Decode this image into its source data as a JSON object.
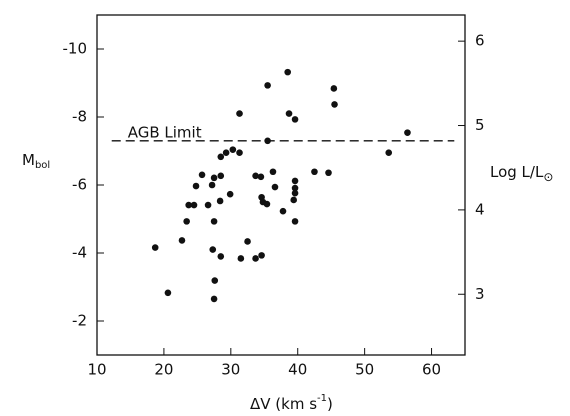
{
  "chart_data": {
    "type": "scatter",
    "x_label": [
      "ΔV (km s",
      "-1",
      ")"
    ],
    "y_label": [
      "M",
      "bol"
    ],
    "y2_label": [
      "Log L/L",
      "⊙"
    ],
    "annotation": "AGB Limit",
    "reference_line": {
      "y": -7.3,
      "x": [
        12.2,
        63.4
      ]
    },
    "xlim": [
      10,
      65
    ],
    "xticks": [
      10,
      20,
      30,
      40,
      50,
      60
    ],
    "ylim": [
      -1,
      -11
    ],
    "yticks": [
      -10,
      -8,
      -6,
      -4,
      -2
    ],
    "y2lim": [
      2.28,
      6.31
    ],
    "y2ticks": [
      3,
      4,
      5,
      6
    ],
    "color": "#111111",
    "x": [
      18.7,
      20.6,
      22.7,
      23.4,
      23.7,
      24.5,
      24.8,
      25.7,
      26.6,
      27.2,
      27.5,
      27.3,
      27.6,
      27.5,
      27.5,
      28.5,
      28.5,
      28.4,
      28.5,
      29.3,
      29.9,
      30.3,
      31.3,
      31.3,
      31.5,
      32.5,
      33.7,
      33.7,
      34.5,
      34.6,
      34.6,
      34.8,
      35.4,
      35.5,
      35.5,
      36.3,
      36.6,
      37.8,
      38.5,
      38.7,
      39.6,
      39.6,
      39.6,
      39.6,
      39.6,
      39.4,
      42.5,
      44.6,
      45.4,
      45.5,
      53.6,
      56.4
    ],
    "values": [
      -4.16,
      -2.83,
      -4.37,
      -4.93,
      -5.41,
      -5.41,
      -5.97,
      -6.3,
      -5.41,
      -6.0,
      -4.93,
      -4.1,
      -3.19,
      -2.65,
      -6.21,
      -6.83,
      -6.27,
      -5.53,
      -3.9,
      -6.95,
      -5.73,
      -7.04,
      -6.95,
      -8.1,
      -3.84,
      -4.34,
      -3.84,
      -6.27,
      -6.24,
      -3.93,
      -5.64,
      -5.5,
      -5.44,
      -8.93,
      -7.3,
      -6.39,
      -5.94,
      -5.23,
      -9.32,
      -8.1,
      -7.93,
      -6.12,
      -5.91,
      -5.76,
      -4.93,
      -5.56,
      -6.39,
      -6.36,
      -8.84,
      -8.37,
      -6.95,
      -7.54
    ]
  }
}
